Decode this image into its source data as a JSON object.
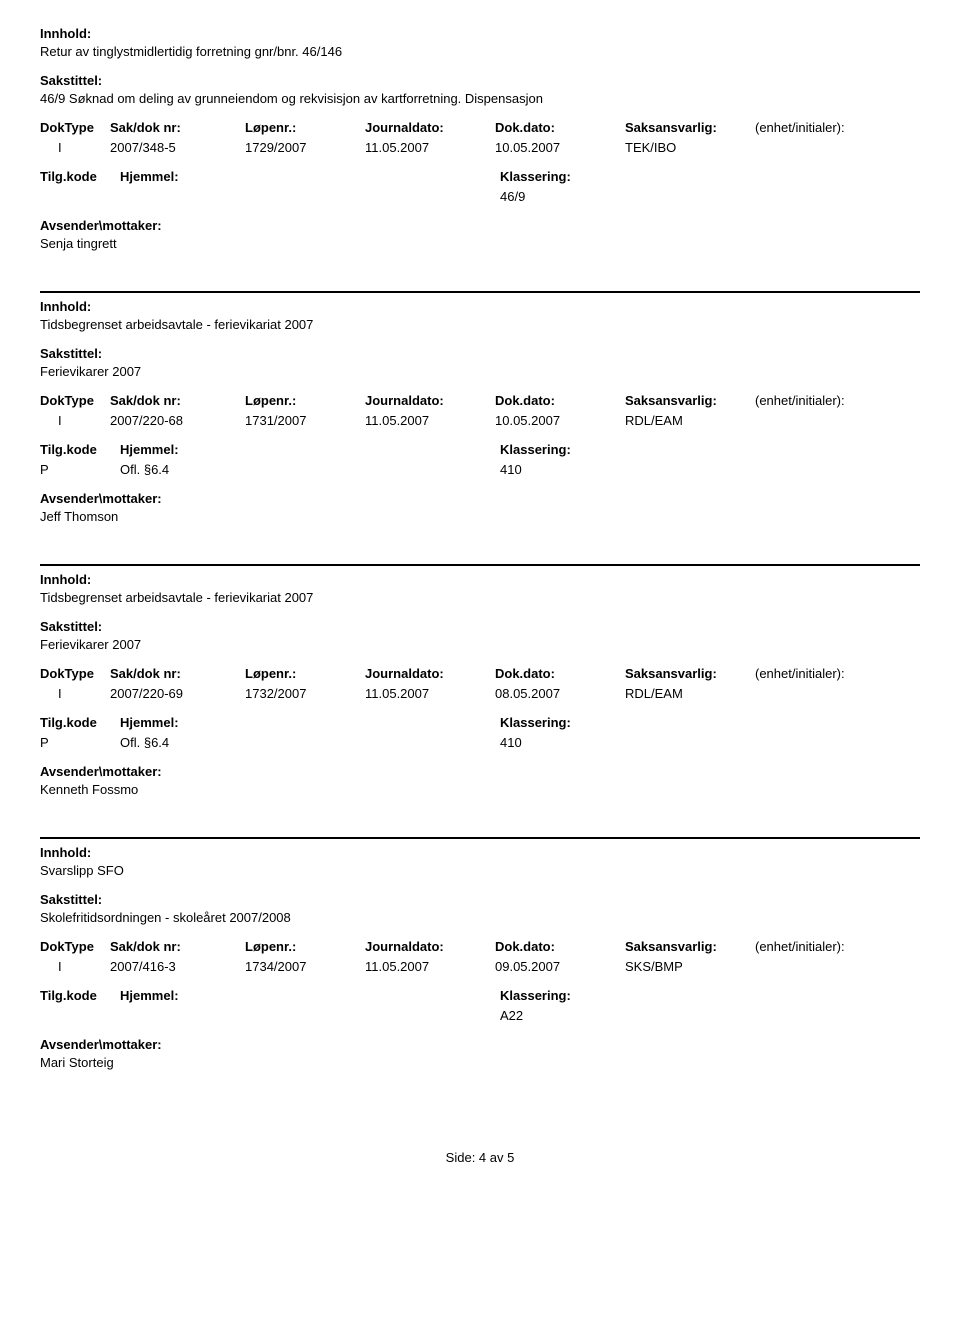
{
  "labels": {
    "innhold": "Innhold:",
    "sakstittel": "Sakstittel:",
    "doktype": "DokType",
    "sakdok": "Sak/dok nr:",
    "lopenr": "Løpenr.:",
    "journaldato": "Journaldato:",
    "dokdato": "Dok.dato:",
    "saksansvarlig": "Saksansvarlig:",
    "enhet": "(enhet/initialer):",
    "tilgkode": "Tilg.kode",
    "hjemmel": "Hjemmel:",
    "klassering": "Klassering:",
    "avsender": "Avsender\\mottaker:"
  },
  "entries": [
    {
      "innhold": "Retur av tinglystmidlertidig forretning gnr/bnr. 46/146",
      "sakstittel": "46/9 Søknad om deling av grunneiendom og rekvisisjon av kartforretning. Dispensasjon",
      "doktype": "I",
      "sakdok": "2007/348-5",
      "lopenr": "1729/2007",
      "journaldato": "11.05.2007",
      "dokdato": "10.05.2007",
      "saksansvarlig": "TEK/IBO",
      "enhet": "",
      "tilgkode": "",
      "hjemmel": "",
      "klassering": "46/9",
      "avsender": "Senja tingrett"
    },
    {
      "innhold": "Tidsbegrenset arbeidsavtale - ferievikariat 2007",
      "sakstittel": "Ferievikarer 2007",
      "doktype": "I",
      "sakdok": "2007/220-68",
      "lopenr": "1731/2007",
      "journaldato": "11.05.2007",
      "dokdato": "10.05.2007",
      "saksansvarlig": "RDL/EAM",
      "enhet": "",
      "tilgkode": "P",
      "hjemmel": "Ofl. §6.4",
      "klassering": "410",
      "avsender": "Jeff Thomson"
    },
    {
      "innhold": "Tidsbegrenset arbeidsavtale - ferievikariat 2007",
      "sakstittel": "Ferievikarer 2007",
      "doktype": "I",
      "sakdok": "2007/220-69",
      "lopenr": "1732/2007",
      "journaldato": "11.05.2007",
      "dokdato": "08.05.2007",
      "saksansvarlig": "RDL/EAM",
      "enhet": "",
      "tilgkode": "P",
      "hjemmel": "Ofl. §6.4",
      "klassering": "410",
      "avsender": "Kenneth Fossmo"
    },
    {
      "innhold": "Svarslipp SFO",
      "sakstittel": "Skolefritidsordningen - skoleåret 2007/2008",
      "doktype": "I",
      "sakdok": "2007/416-3",
      "lopenr": "1734/2007",
      "journaldato": "11.05.2007",
      "dokdato": "09.05.2007",
      "saksansvarlig": "SKS/BMP",
      "enhet": "",
      "tilgkode": "",
      "hjemmel": "",
      "klassering": "A22",
      "avsender": "Mari Storteig"
    }
  ],
  "footer": "Side: 4 av 5"
}
